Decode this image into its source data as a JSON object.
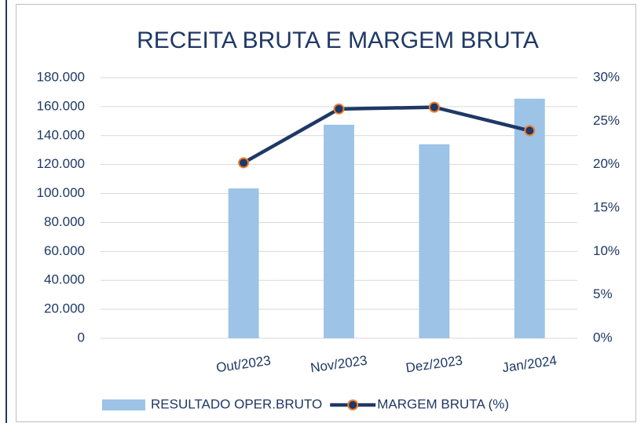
{
  "chart_data": {
    "type": "bar_line",
    "title": "RECEITA BRUTA E MARGEM BRUTA",
    "categories": [
      null,
      "Out/2023",
      "Nov/2023",
      "Dez/2023",
      "Jan/2024"
    ],
    "series": [
      {
        "name": "RESULTADO OPER.BRUTO",
        "type": "bar",
        "color": "#9dc3e6",
        "values": [
          null,
          103500,
          147500,
          134000,
          165500
        ]
      },
      {
        "name": "MARGEM BRUTA (%)",
        "type": "line",
        "axis": "y2",
        "color": "#1f3864",
        "marker_edge": "#ed7d31",
        "values": [
          null,
          20.2,
          26.4,
          26.6,
          23.9
        ]
      }
    ],
    "ylim": [
      0,
      180000
    ],
    "yticks": [
      0,
      {
        "value": 20000,
        "label": "20.000"
      },
      {
        "value": 40000,
        "label": "40.000"
      },
      {
        "value": 60000,
        "label": "60.000"
      },
      {
        "value": 80000,
        "label": "80.000"
      },
      {
        "value": 100000,
        "label": "100.000"
      },
      {
        "value": 120000,
        "label": "120.000"
      },
      {
        "value": 140000,
        "label": "140.000"
      },
      {
        "value": 160000,
        "label": "160.000"
      },
      {
        "value": 180000,
        "label": "180.000"
      }
    ],
    "y2lim": [
      0,
      30
    ],
    "y2ticks": [
      {
        "value": 0,
        "label": "0%"
      },
      {
        "value": 5,
        "label": "5%"
      },
      {
        "value": 10,
        "label": "10%"
      },
      {
        "value": 15,
        "label": "15%"
      },
      {
        "value": 20,
        "label": "20%"
      },
      {
        "value": 25,
        "label": "25%"
      },
      {
        "value": 30,
        "label": "30%"
      }
    ],
    "grid": true,
    "legend": "bottom"
  }
}
